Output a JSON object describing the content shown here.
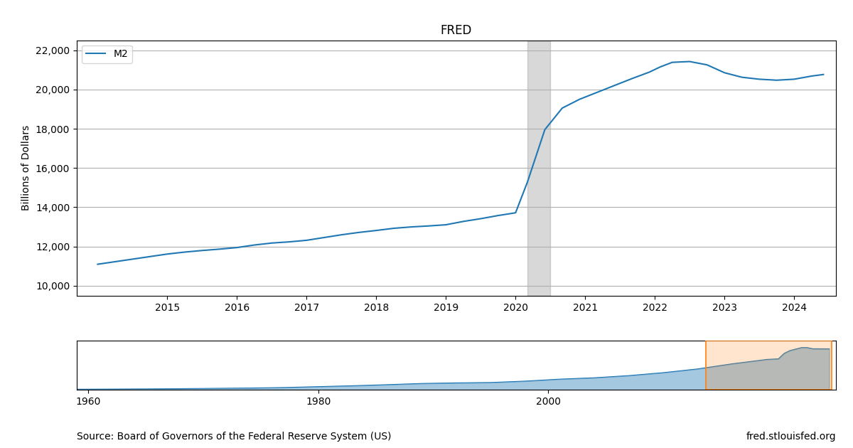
{
  "chart_data": [
    {
      "type": "line",
      "title": "FRED",
      "ylabel": "Billions of Dollars",
      "x": [
        2014.0,
        2014.25,
        2014.5,
        2014.75,
        2015.0,
        2015.25,
        2015.5,
        2015.75,
        2016.0,
        2016.25,
        2016.5,
        2016.75,
        2017.0,
        2017.25,
        2017.5,
        2017.75,
        2018.0,
        2018.25,
        2018.5,
        2018.75,
        2019.0,
        2019.25,
        2019.5,
        2019.75,
        2020.0,
        2020.17,
        2020.42,
        2020.67,
        2020.92,
        2021.17,
        2021.42,
        2021.67,
        2021.92,
        2022.08,
        2022.25,
        2022.5,
        2022.75,
        2023.0,
        2023.25,
        2023.5,
        2023.75,
        2024.0,
        2024.25,
        2024.42
      ],
      "series": [
        {
          "name": "M2",
          "values": [
            11100,
            11230,
            11360,
            11490,
            11620,
            11720,
            11800,
            11870,
            11950,
            12080,
            12180,
            12240,
            12320,
            12460,
            12600,
            12720,
            12820,
            12930,
            13000,
            13050,
            13110,
            13280,
            13420,
            13580,
            13720,
            15280,
            17950,
            19050,
            19500,
            19850,
            20200,
            20550,
            20880,
            21150,
            21380,
            21420,
            21250,
            20850,
            20620,
            20520,
            20470,
            20520,
            20680,
            20760
          ]
        }
      ],
      "xlim": [
        2013.7,
        2024.6
      ],
      "xticks": [
        2015,
        2016,
        2017,
        2018,
        2019,
        2020,
        2021,
        2022,
        2023,
        2024
      ],
      "ylim": [
        9500,
        22500
      ],
      "yticks": [
        {
          "value": 10000,
          "label": "10,000"
        },
        {
          "value": 12000,
          "label": "12,000"
        },
        {
          "value": 14000,
          "label": "14,000"
        },
        {
          "value": 16000,
          "label": "16,000"
        },
        {
          "value": 18000,
          "label": "18,000"
        },
        {
          "value": 20000,
          "label": "20,000"
        },
        {
          "value": 22000,
          "label": "22,000"
        }
      ],
      "grid": "y",
      "legend": "upper left",
      "recession": [
        2020.17,
        2020.5
      ],
      "annotations": [
        "Source: Board of Governors of the Federal Reserve System (US)",
        "fred.stlouisfed.org"
      ]
    },
    {
      "type": "area",
      "x": [
        1959,
        1962,
        1965,
        1968,
        1971,
        1974,
        1977,
        1980,
        1983,
        1986,
        1989,
        1992,
        1995,
        1998,
        2001,
        2004,
        2007,
        2010,
        2013,
        2016,
        2019,
        2020.0,
        2020.5,
        2021.0,
        2022.0,
        2022.5,
        2023.0,
        2024.42
      ],
      "values": [
        290,
        360,
        450,
        580,
        720,
        900,
        1150,
        1600,
        2050,
        2600,
        3200,
        3500,
        3700,
        4400,
        5400,
        6100,
        7200,
        8700,
        10600,
        13200,
        15400,
        15700,
        18500,
        19900,
        21400,
        21400,
        20800,
        20760
      ],
      "xlim": [
        1959,
        2025
      ],
      "ylim": [
        0,
        25000
      ],
      "xticks": [
        1960,
        1980,
        2000
      ],
      "tick_labels": "x",
      "window": [
        2013.7,
        2024.6
      ]
    }
  ]
}
